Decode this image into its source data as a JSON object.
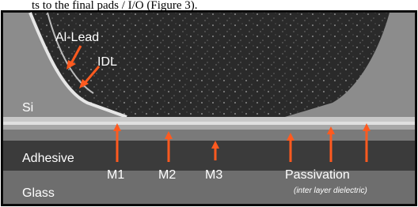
{
  "caption": "ts to the final pads / I/O (Figure 3).",
  "labels": {
    "al_lead": "Al-Lead",
    "idl": "IDL",
    "si": "Si",
    "adhesive": "Adhesive",
    "m1": "M1",
    "m2": "M2",
    "m3": "M3",
    "passivation": "Passivation",
    "passivation_note": "(inter layer dielectric)",
    "glass": "Glass"
  }
}
